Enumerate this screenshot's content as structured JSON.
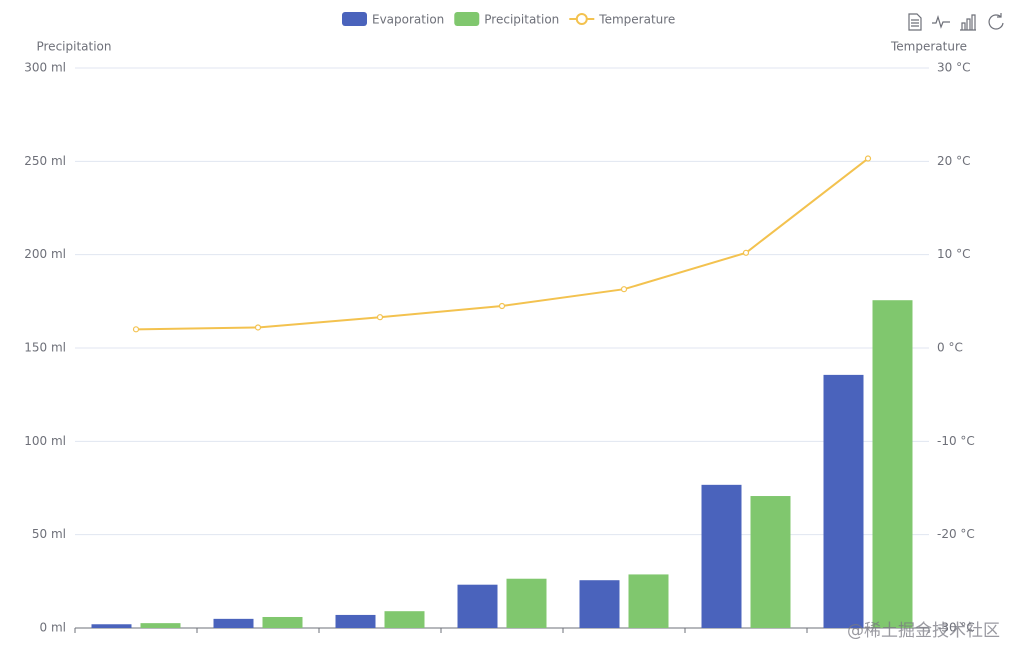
{
  "chart_data": {
    "type": "bar-line",
    "categories": [
      null,
      null,
      null,
      null,
      null,
      null,
      null
    ],
    "series": [
      {
        "name": "Evaporation",
        "type": "bar",
        "color": "#4a63bc",
        "values": [
          2.0,
          4.9,
          7.0,
          23.2,
          25.6,
          76.7,
          135.6
        ]
      },
      {
        "name": "Precipitation",
        "type": "bar",
        "color": "#80c76e",
        "values": [
          2.6,
          5.9,
          9.0,
          26.4,
          28.7,
          70.7,
          175.6
        ]
      },
      {
        "name": "Temperature",
        "type": "line",
        "axis": "y2",
        "color": "#f3c24f",
        "values": [
          2.0,
          2.2,
          3.3,
          4.5,
          6.3,
          10.2,
          20.3
        ]
      }
    ],
    "y_label": "Precipitation",
    "y2_label": "Temperature",
    "ylim": [
      0,
      300
    ],
    "yticks": [
      {
        "value": 0,
        "label": "0 ml"
      },
      {
        "value": 50,
        "label": "50 ml"
      },
      {
        "value": 100,
        "label": "100 ml"
      },
      {
        "value": 150,
        "label": "150 ml"
      },
      {
        "value": 200,
        "label": "200 ml"
      },
      {
        "value": 250,
        "label": "250 ml"
      },
      {
        "value": 300,
        "label": "300 ml"
      }
    ],
    "y2lim": [
      -30,
      30
    ],
    "y2ticks": [
      {
        "value": -30,
        "label": "-30 °C"
      },
      {
        "value": -20,
        "label": "-20 °C"
      },
      {
        "value": -10,
        "label": "-10 °C"
      },
      {
        "value": 0,
        "label": "0 °C"
      },
      {
        "value": 10,
        "label": "10 °C"
      },
      {
        "value": 20,
        "label": "20 °C"
      },
      {
        "value": 30,
        "label": "30 °C"
      }
    ],
    "grid": true,
    "legend": "top",
    "watermark": "@稀土掘金技术社区"
  }
}
